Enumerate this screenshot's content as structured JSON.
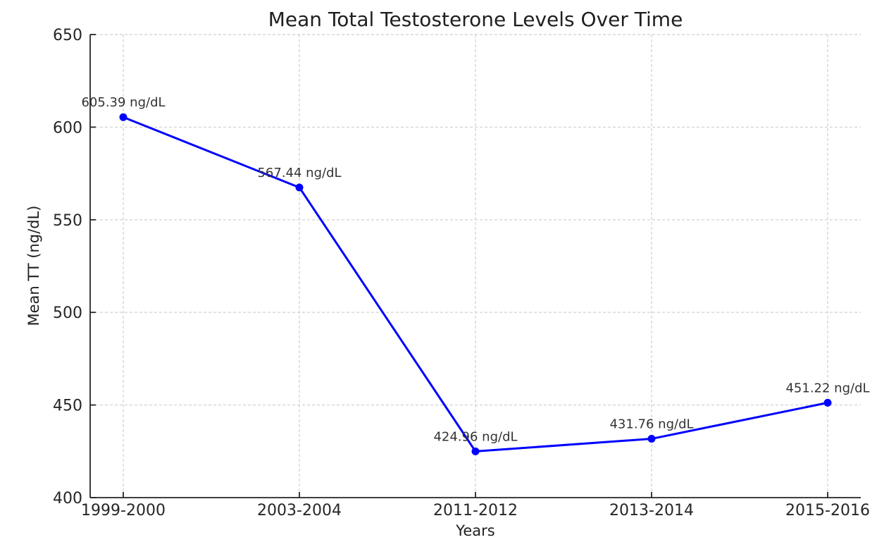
{
  "chart_data": {
    "type": "line",
    "title": "Mean Total Testosterone Levels Over Time",
    "xlabel": "Years",
    "ylabel": "Mean TT (ng/dL)",
    "categories": [
      "1999-2000",
      "2003-2004",
      "2011-2012",
      "2013-2014",
      "2015-2016"
    ],
    "values": [
      605.39,
      567.44,
      424.96,
      431.76,
      451.22
    ],
    "point_labels": [
      "605.39 ng/dL",
      "567.44 ng/dL",
      "424.96 ng/dL",
      "431.76 ng/dL",
      "451.22 ng/dL"
    ],
    "ylim": [
      400,
      650
    ],
    "yticks": [
      400,
      450,
      500,
      550,
      600,
      650
    ],
    "grid": true,
    "grid_style": "dashed",
    "legend_position": "none",
    "line_color": "#0000ff",
    "marker_color": "#0000ff",
    "marker": "circle",
    "grid_color": "#d6d6d6",
    "axis_color": "#262626",
    "background_color": "#ffffff"
  }
}
